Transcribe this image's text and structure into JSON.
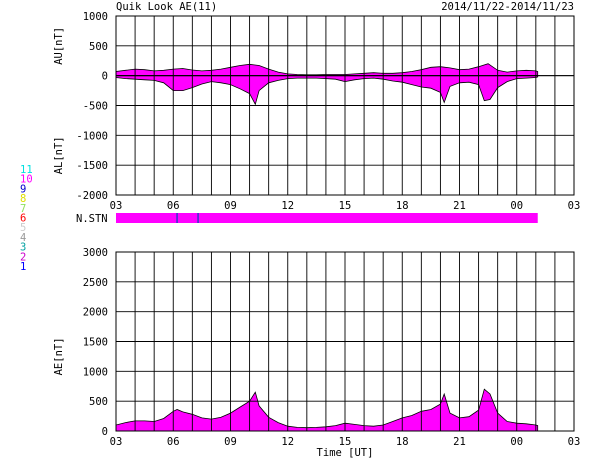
{
  "header": {
    "title": "Quik Look AE(11)",
    "date_range": "2014/11/22-2014/11/23"
  },
  "colors": {
    "fill": "#ff00ff",
    "outline": "#000000",
    "grid": "#000000",
    "station_marker": "#3333cc"
  },
  "station_legend": [
    {
      "label": "11",
      "color": "#00e0e0"
    },
    {
      "label": "10",
      "color": "#ff00ff"
    },
    {
      "label": "9",
      "color": "#0000cc"
    },
    {
      "label": "8",
      "color": "#e0e000"
    },
    {
      "label": "7",
      "color": "#90e060"
    },
    {
      "label": "6",
      "color": "#ff0000"
    },
    {
      "label": "5",
      "color": "#cccccc"
    },
    {
      "label": "4",
      "color": "#999999"
    },
    {
      "label": "3",
      "color": "#00a0a0"
    },
    {
      "label": "2",
      "color": "#cc00cc"
    },
    {
      "label": "1",
      "color": "#0000ff"
    }
  ],
  "station_bar": {
    "label": "N.STN",
    "x_range": [
      3,
      25.1
    ],
    "markers": [
      6.2,
      7.3
    ]
  },
  "chart_data": [
    {
      "type": "area",
      "title": "AU/AL",
      "ylabel_top": "AU[nT]",
      "ylabel_bottom": "AL[nT]",
      "ylim": [
        -2000,
        1000
      ],
      "yticks": [
        1000,
        500,
        0,
        -500,
        -1000,
        -1500,
        -2000
      ],
      "xlim": [
        3,
        27
      ],
      "xtick_labels": [
        "03",
        "06",
        "09",
        "12",
        "15",
        "18",
        "21",
        "00",
        "03"
      ],
      "grid": true,
      "series": [
        {
          "name": "AU",
          "x": [
            3.0,
            3.5,
            4.0,
            4.5,
            5.0,
            5.5,
            6.0,
            6.5,
            7.0,
            7.5,
            8.0,
            8.5,
            9.0,
            9.5,
            10.0,
            10.5,
            11.0,
            11.5,
            12.0,
            12.5,
            13.0,
            13.5,
            14.0,
            14.5,
            15.0,
            15.5,
            16.0,
            16.5,
            17.0,
            17.5,
            18.0,
            18.5,
            19.0,
            19.5,
            20.0,
            20.5,
            21.0,
            21.5,
            22.0,
            22.5,
            23.0,
            23.5,
            24.0,
            24.5,
            25.0,
            25.1
          ],
          "values": [
            70,
            90,
            110,
            100,
            80,
            90,
            110,
            120,
            95,
            80,
            90,
            110,
            140,
            170,
            190,
            170,
            110,
            60,
            30,
            20,
            15,
            15,
            20,
            20,
            20,
            30,
            40,
            50,
            40,
            40,
            50,
            70,
            100,
            140,
            150,
            130,
            100,
            110,
            150,
            200,
            90,
            60,
            80,
            90,
            80,
            70
          ]
        },
        {
          "name": "AL",
          "x": [
            3.0,
            3.5,
            4.0,
            4.5,
            5.0,
            5.5,
            6.0,
            6.5,
            7.0,
            7.5,
            8.0,
            8.5,
            9.0,
            9.5,
            10.0,
            10.3,
            10.5,
            11.0,
            11.5,
            12.0,
            12.5,
            13.0,
            13.5,
            14.0,
            14.5,
            15.0,
            15.5,
            16.0,
            16.5,
            17.0,
            17.5,
            18.0,
            18.5,
            19.0,
            19.5,
            20.0,
            20.2,
            20.5,
            21.0,
            21.5,
            22.0,
            22.3,
            22.6,
            23.0,
            23.5,
            24.0,
            24.5,
            25.0,
            25.1
          ],
          "values": [
            -30,
            -50,
            -60,
            -70,
            -80,
            -120,
            -250,
            -250,
            -200,
            -140,
            -100,
            -120,
            -150,
            -220,
            -300,
            -480,
            -250,
            -120,
            -80,
            -50,
            -40,
            -40,
            -40,
            -50,
            -60,
            -100,
            -70,
            -50,
            -40,
            -60,
            -90,
            -110,
            -150,
            -190,
            -210,
            -280,
            -450,
            -180,
            -120,
            -110,
            -150,
            -420,
            -400,
            -200,
            -100,
            -50,
            -40,
            -30,
            -20
          ]
        }
      ]
    },
    {
      "type": "area",
      "title": "AE",
      "ylabel": "AE[nT]",
      "xlabel": "Time [UT]",
      "ylim": [
        0,
        3000
      ],
      "yticks": [
        3000,
        2500,
        2000,
        1500,
        1000,
        500,
        0
      ],
      "xlim": [
        3,
        27
      ],
      "xtick_labels": [
        "03",
        "06",
        "09",
        "12",
        "15",
        "18",
        "21",
        "00",
        "03"
      ],
      "grid": true,
      "series": [
        {
          "name": "AE",
          "x": [
            3.0,
            3.5,
            4.0,
            4.5,
            5.0,
            5.5,
            6.0,
            6.2,
            6.5,
            7.0,
            7.5,
            8.0,
            8.5,
            9.0,
            9.5,
            10.0,
            10.3,
            10.5,
            11.0,
            11.5,
            12.0,
            12.5,
            13.0,
            13.5,
            14.0,
            14.5,
            15.0,
            15.5,
            16.0,
            16.5,
            17.0,
            17.5,
            18.0,
            18.5,
            19.0,
            19.5,
            20.0,
            20.2,
            20.5,
            21.0,
            21.5,
            22.0,
            22.3,
            22.6,
            23.0,
            23.5,
            24.0,
            24.5,
            25.0,
            25.1
          ],
          "values": [
            100,
            140,
            170,
            170,
            160,
            210,
            330,
            360,
            320,
            280,
            220,
            200,
            230,
            300,
            400,
            500,
            650,
            420,
            230,
            140,
            80,
            60,
            55,
            60,
            70,
            90,
            130,
            110,
            90,
            80,
            100,
            160,
            220,
            260,
            330,
            360,
            450,
            620,
            300,
            220,
            240,
            350,
            700,
            620,
            300,
            160,
            130,
            120,
            100,
            90
          ]
        }
      ]
    }
  ]
}
